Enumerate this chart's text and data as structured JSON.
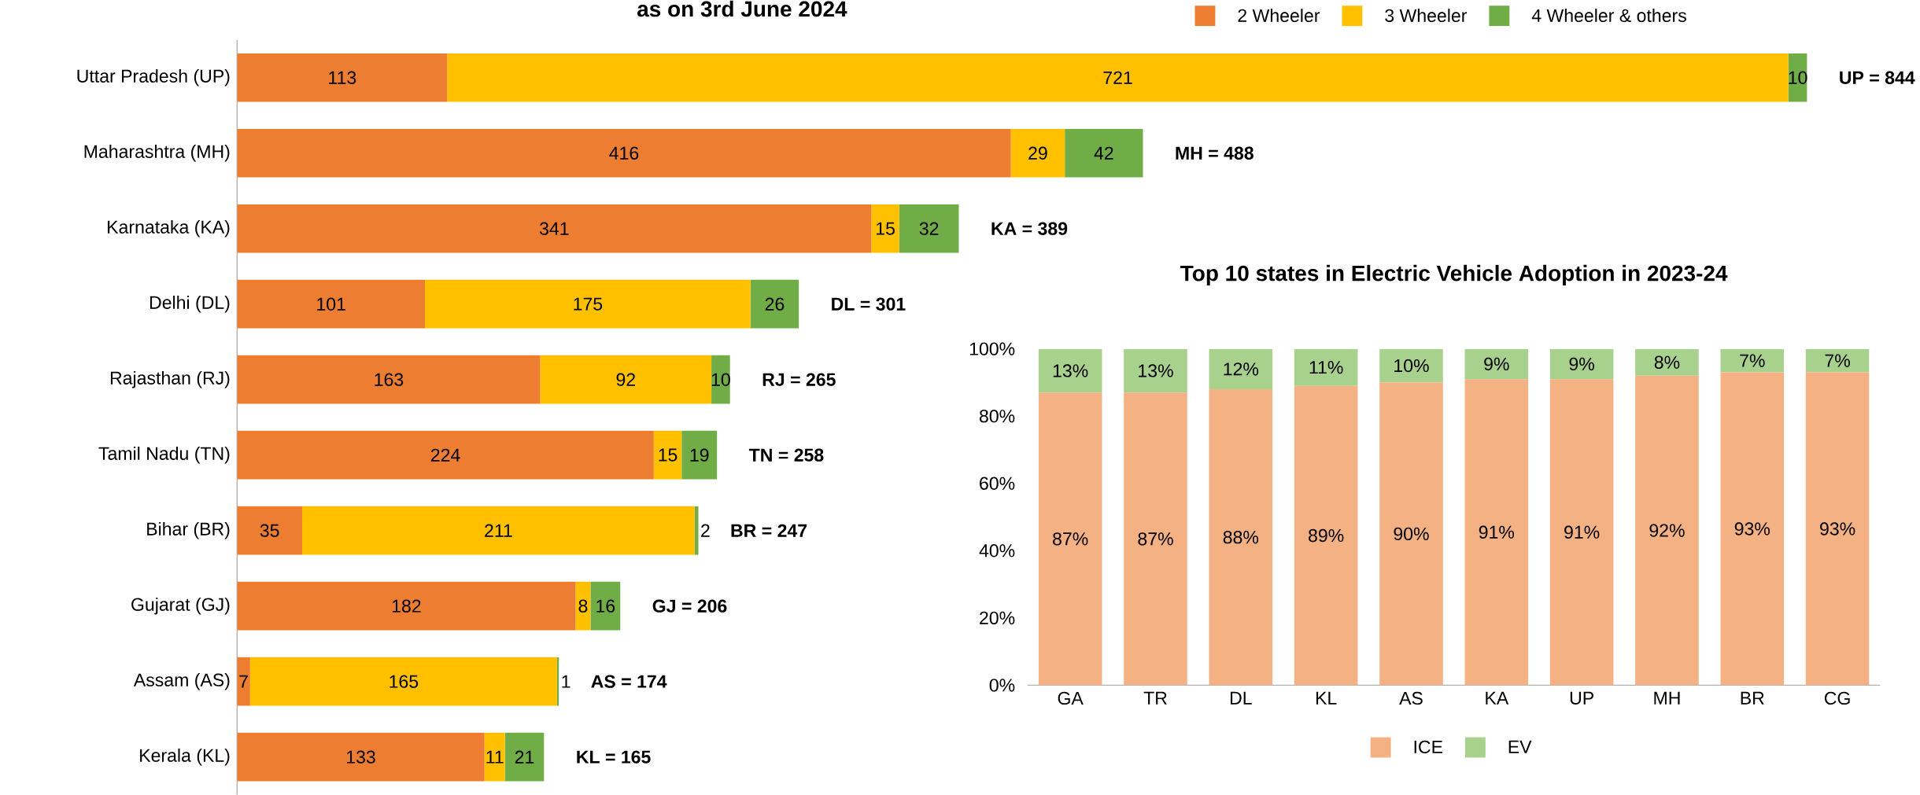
{
  "chart_data": [
    {
      "type": "bar",
      "orientation": "horizontal",
      "stacked": true,
      "title": "as on 3rd June 2024",
      "categories": [
        "Uttar Pradesh (UP)",
        "Maharashtra (MH)",
        "Karnataka (KA)",
        "Delhi (DL)",
        "Rajasthan (RJ)",
        "Tamil Nadu (TN)",
        "Bihar (BR)",
        "Gujarat (GJ)",
        "Assam (AS)",
        "Kerala (KL)"
      ],
      "series": [
        {
          "name": "2 Wheeler",
          "color": "#ed7d31",
          "values": [
            113,
            416,
            341,
            101,
            163,
            224,
            35,
            182,
            7,
            133
          ]
        },
        {
          "name": "3 Wheeler",
          "color": "#ffc000",
          "values": [
            721,
            29,
            15,
            175,
            92,
            15,
            211,
            8,
            165,
            11
          ]
        },
        {
          "name": "4 Wheeler & others",
          "color": "#70ad47",
          "values": [
            10,
            42,
            32,
            26,
            10,
            19,
            2,
            16,
            1,
            21
          ]
        }
      ],
      "totals": [
        "UP = 844",
        "MH = 488",
        "KA = 389",
        "DL = 301",
        "RJ = 265",
        "TN = 258",
        "BR = 247",
        "GJ = 206",
        "AS = 174",
        "KL = 165"
      ],
      "data_labels": true,
      "legend": "top right",
      "tick_labels": "y"
    },
    {
      "type": "bar",
      "stacked": true,
      "title": "Top 10 states in Electric Vehicle Adoption in 2023-24",
      "categories": [
        "GA",
        "TR",
        "DL",
        "KL",
        "AS",
        "KA",
        "UP",
        "MH",
        "BR",
        "CG"
      ],
      "series": [
        {
          "name": "ICE",
          "color": "#f4b183",
          "values": [
            87,
            87,
            88,
            89,
            90,
            91,
            91,
            92,
            93,
            93
          ],
          "value_labels": [
            "87%",
            "87%",
            "88%",
            "89%",
            "90%",
            "91%",
            "91%",
            "92%",
            "93%",
            "93%"
          ]
        },
        {
          "name": "EV",
          "color": "#a9d18e",
          "values": [
            13,
            13,
            12,
            11,
            10,
            9,
            9,
            8,
            7,
            7
          ],
          "value_labels": [
            "13%",
            "13%",
            "12%",
            "11%",
            "10%",
            "9%",
            "9%",
            "8%",
            "7%",
            "7%"
          ]
        }
      ],
      "ylim": [
        0,
        100
      ],
      "yticks": [
        {
          "value": 0,
          "label": "0%"
        },
        {
          "value": 20,
          "label": "20%"
        },
        {
          "value": 40,
          "label": "40%"
        },
        {
          "value": 60,
          "label": "60%"
        },
        {
          "value": 80,
          "label": "80%"
        },
        {
          "value": 100,
          "label": "100%"
        }
      ],
      "legend": "bottom"
    }
  ]
}
